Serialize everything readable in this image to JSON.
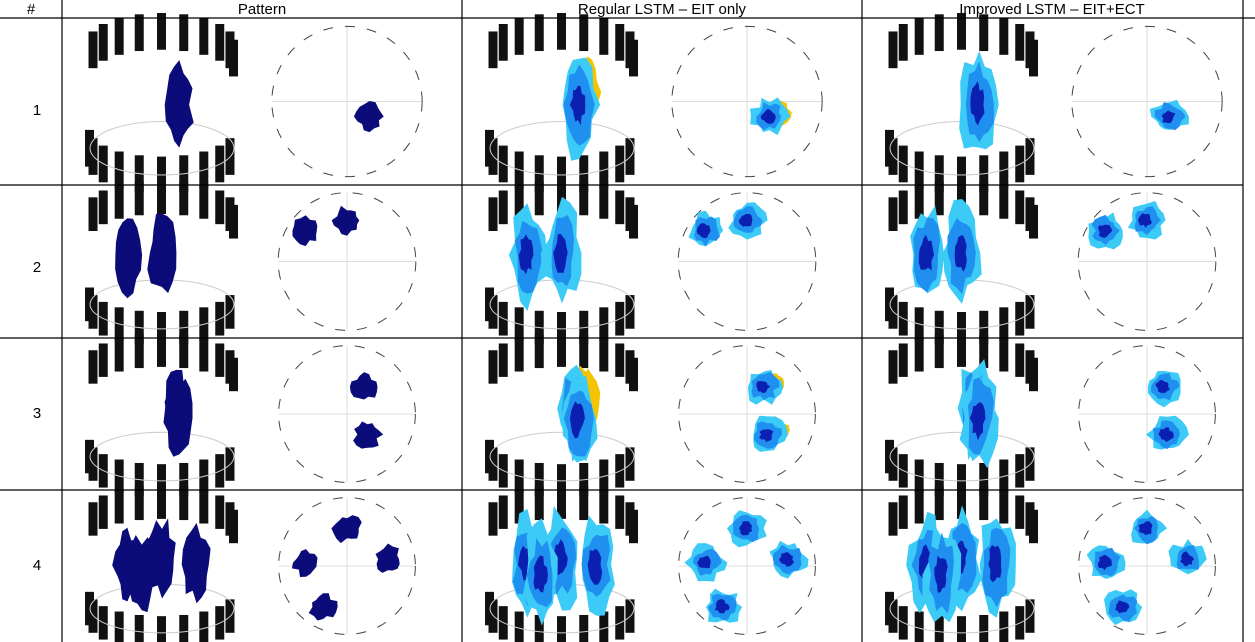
{
  "table": {
    "header": [
      "#",
      "Pattern",
      "Regular LSTM – EIT only",
      "Improved LSTM – EIT+ECT"
    ],
    "row_labels": [
      "1",
      "2",
      "3",
      "4"
    ]
  }
}
